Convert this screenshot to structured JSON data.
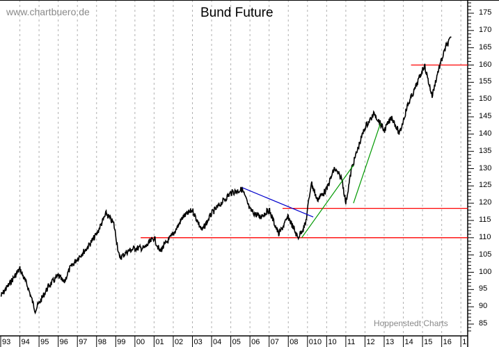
{
  "header": {
    "title": "Bund Future",
    "watermark": "www.chartbuero.de",
    "credit": "Hoppenstedt Charts"
  },
  "colors": {
    "price_line": "#000000",
    "support_lines": "#ff0000",
    "downtrend_line": "#0000cc",
    "uptrend_lines": "#009900",
    "grid": "#b0b0b0"
  },
  "chart_data": {
    "type": "line",
    "title": "Bund Future",
    "xlabel": "",
    "ylabel": "",
    "ylim": [
      83,
      178
    ],
    "y_ticks": [
      85,
      90,
      95,
      100,
      105,
      110,
      115,
      120,
      125,
      130,
      135,
      140,
      145,
      150,
      155,
      160,
      165,
      170,
      175
    ],
    "x_tick_labels": [
      "93",
      "94",
      "95",
      "96",
      "97",
      "98",
      "99",
      "00",
      "01",
      "02",
      "03",
      "04",
      "05",
      "06",
      "07",
      "08",
      "010",
      "10",
      "11",
      "12",
      "13",
      "14",
      "15",
      "16",
      "1"
    ],
    "grid": "vertical dashed per year",
    "legend": "none",
    "series": [
      {
        "name": "Bund Future (approx. price path)",
        "x": [
          1993.0,
          1993.5,
          1994.0,
          1994.4,
          1994.8,
          1995.0,
          1995.5,
          1996.0,
          1996.3,
          1996.6,
          1997.0,
          1997.5,
          1998.0,
          1998.5,
          1998.9,
          1999.2,
          1999.6,
          2000.0,
          2000.5,
          2001.0,
          2001.3,
          2001.7,
          2002.0,
          2002.5,
          2003.0,
          2003.5,
          2004.0,
          2004.5,
          2005.0,
          2005.6,
          2006.0,
          2006.5,
          2007.0,
          2007.5,
          2008.0,
          2008.5,
          2008.9,
          2009.2,
          2009.5,
          2010.0,
          2010.4,
          2010.8,
          2011.0,
          2011.3,
          2011.7,
          2012.0,
          2012.5,
          2013.0,
          2013.4,
          2013.8,
          2014.2,
          2014.6,
          2015.1,
          2015.5,
          2015.8,
          2016.2,
          2016.5
        ],
        "values": [
          93,
          97,
          101,
          96,
          89,
          91,
          96,
          99,
          97,
          101,
          104,
          107,
          111,
          117,
          114,
          104,
          106,
          107,
          107,
          110,
          106,
          109,
          111,
          116,
          118,
          112,
          117,
          120,
          123,
          124,
          118,
          116,
          118,
          111,
          116,
          110,
          114,
          126,
          121,
          124,
          130,
          127,
          120,
          130,
          137,
          142,
          146,
          141,
          145,
          140,
          148,
          153,
          160,
          151,
          158,
          165,
          168
        ]
      }
    ],
    "annotations": [
      {
        "type": "hline",
        "color": "red",
        "y": 110,
        "from_x": 2000.3,
        "to_x": 2017
      },
      {
        "type": "hline",
        "color": "red",
        "y": 118.5,
        "from_x": 2007.7,
        "to_x": 2017
      },
      {
        "type": "hline",
        "color": "red",
        "y": 160,
        "from_x": 2014.4,
        "to_x": 2017
      },
      {
        "type": "trendline",
        "color": "blue",
        "from": [
          2005.6,
          124.5
        ],
        "to": [
          2009.3,
          116
        ]
      },
      {
        "type": "trendline",
        "color": "green",
        "from": [
          2008.7,
          110
        ],
        "to": [
          2011.4,
          131
        ]
      },
      {
        "type": "trendline",
        "color": "green",
        "from": [
          2011.4,
          120
        ],
        "to": [
          2012.8,
          143
        ]
      }
    ]
  }
}
